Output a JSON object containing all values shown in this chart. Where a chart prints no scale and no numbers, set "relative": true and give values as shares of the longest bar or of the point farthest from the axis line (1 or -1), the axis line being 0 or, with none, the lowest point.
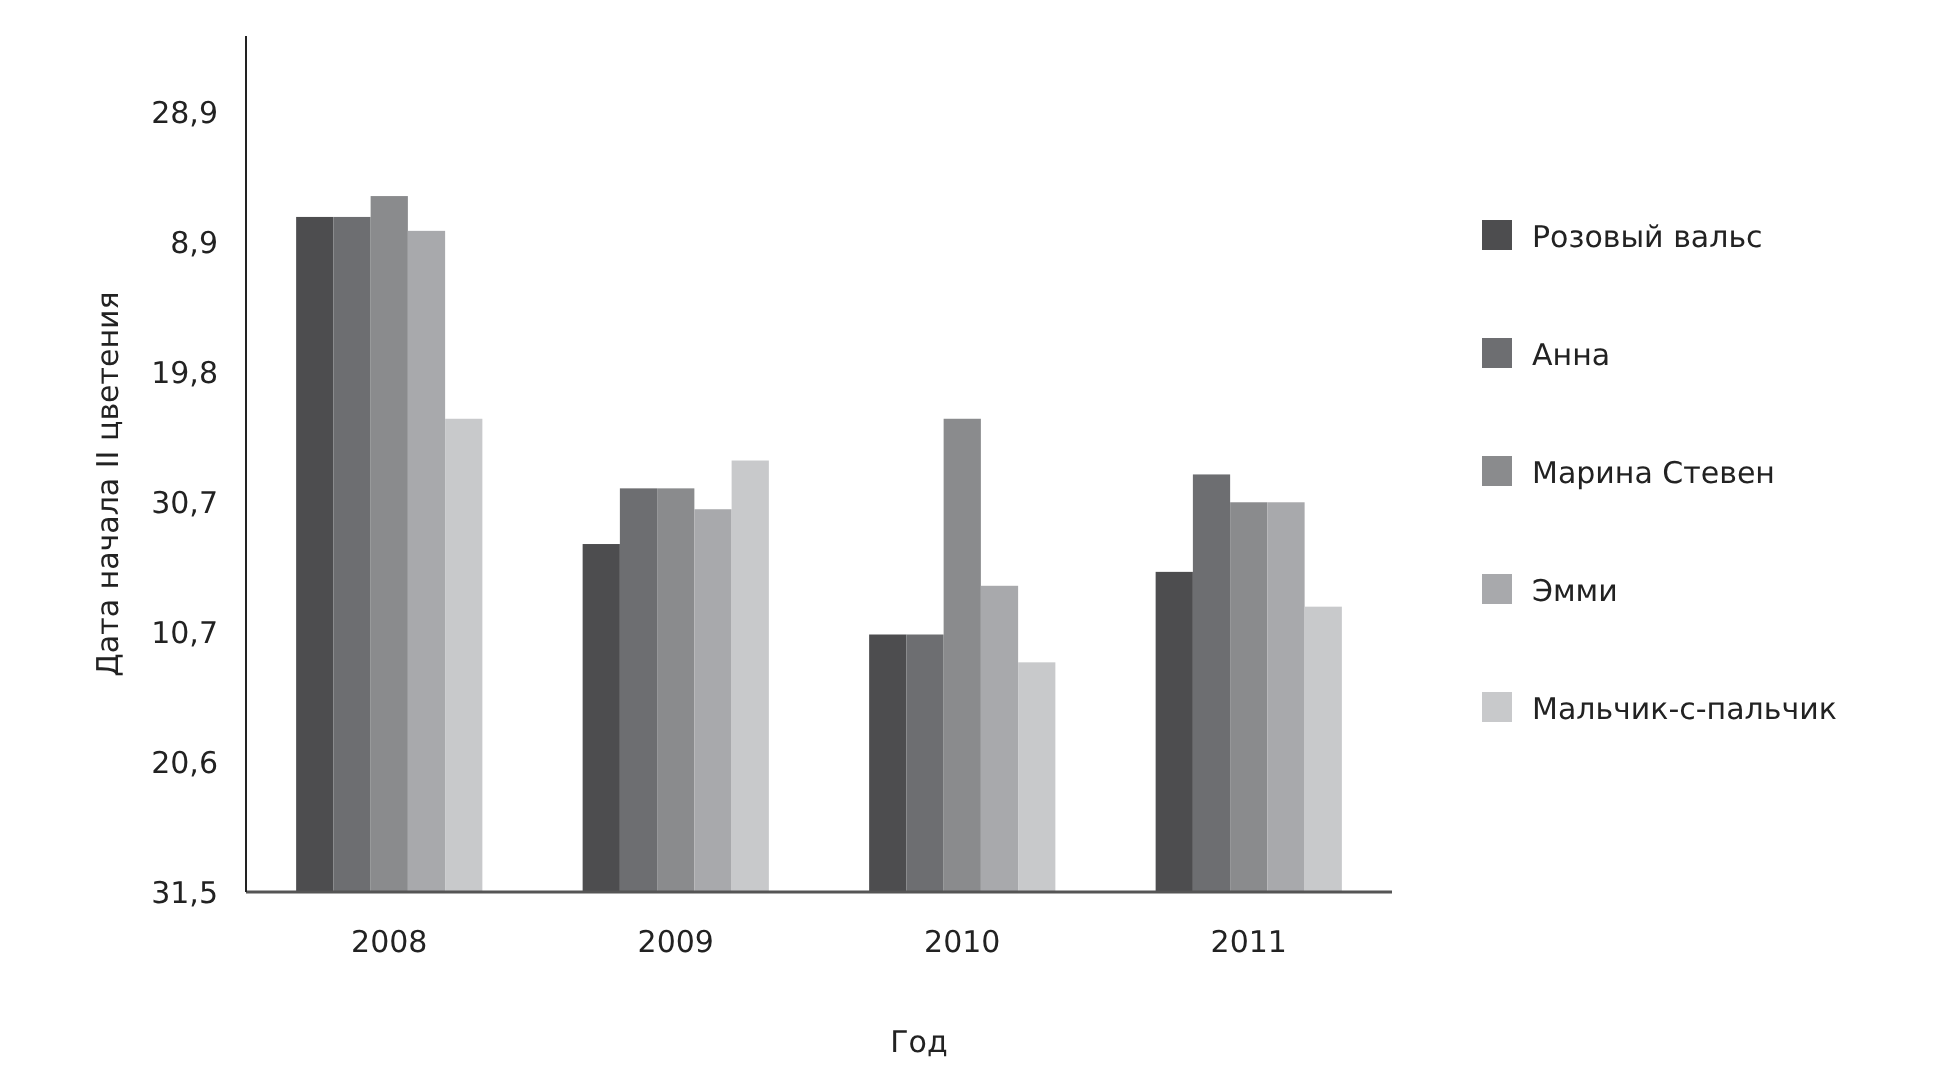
{
  "chart_data": {
    "type": "bar",
    "xlabel": "Год",
    "ylabel": "Дата начала II цветения",
    "relative": true,
    "categories": [
      "2008",
      "2009",
      "2010",
      "2011"
    ],
    "series": [
      {
        "name": "Розовый вальс",
        "color": "#4d4d4f",
        "values": [
          0.97,
          0.5,
          0.37,
          0.46
        ]
      },
      {
        "name": "Анна",
        "color": "#6d6e71",
        "values": [
          0.97,
          0.58,
          0.37,
          0.6
        ]
      },
      {
        "name": "Марина Стевен",
        "color": "#8a8b8d",
        "values": [
          1,
          0.58,
          0.68,
          0.56
        ]
      },
      {
        "name": "Эмми",
        "color": "#a8a9ac",
        "values": [
          0.95,
          0.55,
          0.44,
          0.56
        ]
      },
      {
        "name": "Мальчик-с-пальчик",
        "color": "#c8c9cb",
        "values": [
          0.68,
          0.62,
          0.33,
          0.41
        ]
      }
    ],
    "annotations": [
      "31,5",
      "20,6",
      "10,7",
      "30,7",
      "19,8",
      "8,9",
      "28,9"
    ],
    "legend": "right"
  }
}
